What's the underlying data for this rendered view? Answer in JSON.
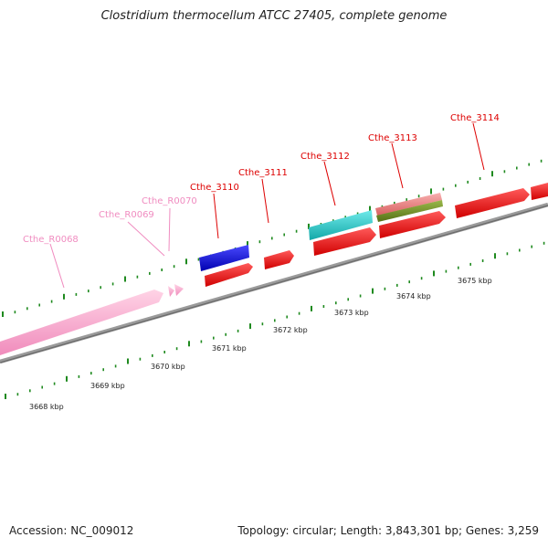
{
  "title": "Clostridium thermocellum ATCC 27405, complete genome",
  "footer": {
    "accession": "Accession: NC_009012",
    "topology": "Topology: circular; Length: 3,843,301 bp; Genes: 3,259"
  },
  "scale_labels": [
    "3668 kbp",
    "3669 kbp",
    "3670 kbp",
    "3671 kbp",
    "3672 kbp",
    "3673 kbp",
    "3674 kbp",
    "3675 kbp"
  ],
  "colors": {
    "pink_feature": "#f8a6c8",
    "blue_feature": "#1010e0",
    "red_feature": "#ff0000",
    "cyan_feature": "#20c8c8",
    "olive_feature": "#6a8a1c",
    "salmon_feature": "#e88080",
    "backbone": "#7a7a7a",
    "ticks": "#1f8a1f",
    "pink_label": "#f08cc0",
    "red_label": "#dd0000"
  },
  "features": [
    {
      "label": "Cthe_R0068",
      "color": "pink_feature"
    },
    {
      "label": "Cthe_R0069",
      "color": "pink_feature"
    },
    {
      "label": "Cthe_R0070",
      "color": "pink_feature"
    },
    {
      "label": "Cthe_3110",
      "color": "blue_feature"
    },
    {
      "label": "Cthe_3111",
      "color": "red_feature"
    },
    {
      "label": "Cthe_3112",
      "color": "cyan_feature"
    },
    {
      "label": "Cthe_3113",
      "color": "salmon_feature"
    },
    {
      "label": "Cthe_3114",
      "color": "red_feature"
    }
  ]
}
